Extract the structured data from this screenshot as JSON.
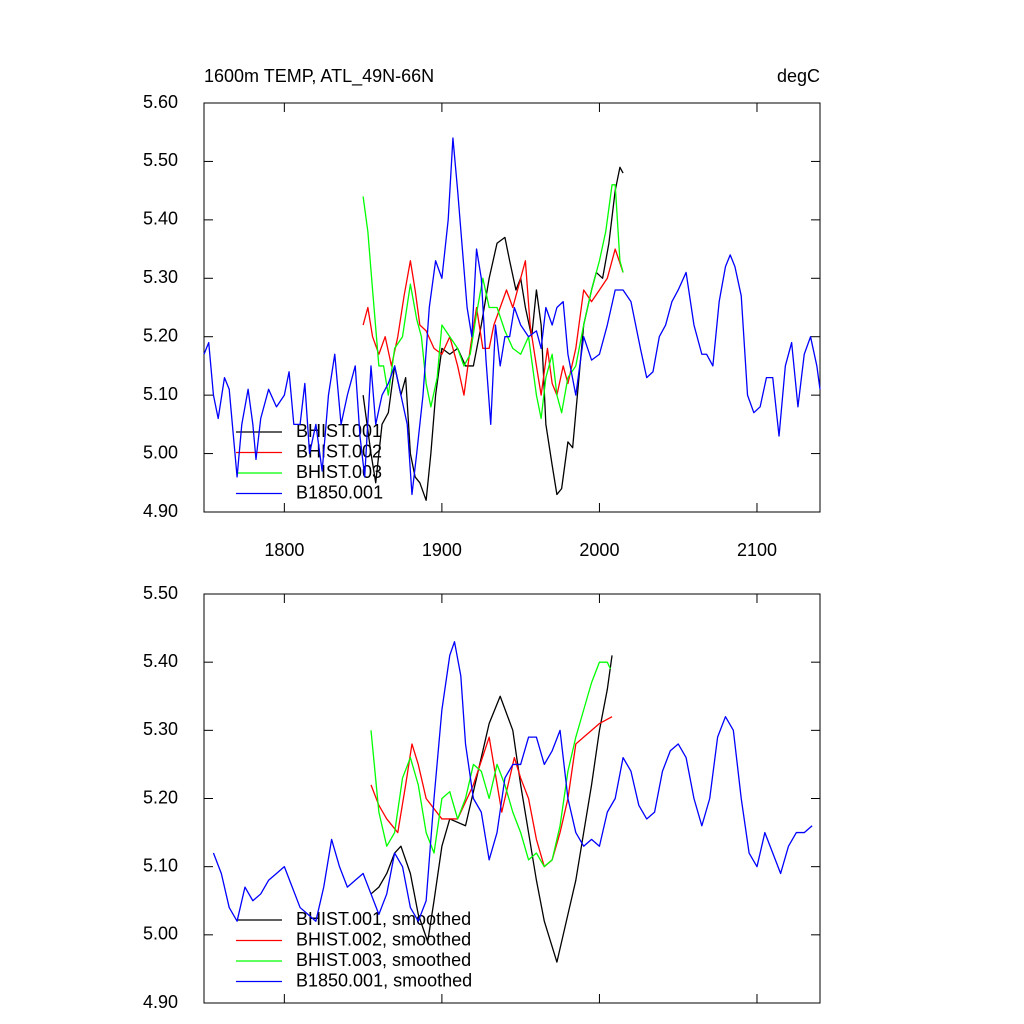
{
  "chart_data": [
    {
      "type": "line",
      "title": "1600m TEMP, ATL_49N-66N",
      "units": "degC",
      "xlim": [
        1749,
        2140
      ],
      "xticks": [
        1800,
        1900,
        2000,
        2100
      ],
      "ylim": [
        4.9,
        5.6
      ],
      "yticks": [
        {
          "value": 4.9,
          "label": "4.90"
        },
        {
          "value": 5.0,
          "label": "5.00"
        },
        {
          "value": 5.1,
          "label": "5.10"
        },
        {
          "value": 5.2,
          "label": "5.20"
        },
        {
          "value": 5.3,
          "label": "5.30"
        },
        {
          "value": 5.4,
          "label": "5.40"
        },
        {
          "value": 5.5,
          "label": "5.50"
        },
        {
          "value": 5.6,
          "label": "5.60"
        }
      ],
      "series": [
        {
          "name": "BHIST.001",
          "color": "#000000",
          "x": [
            1850,
            1855,
            1858,
            1862,
            1866,
            1870,
            1874,
            1877,
            1880,
            1883,
            1886,
            1890,
            1893,
            1896,
            1900,
            1905,
            1910,
            1915,
            1920,
            1925,
            1930,
            1935,
            1940,
            1943,
            1947,
            1950,
            1953,
            1957,
            1960,
            1963,
            1966,
            1970,
            1973,
            1976,
            1980,
            1983,
            1986,
            1990,
            1995,
            1998,
            2002,
            2006,
            2010,
            2013,
            2015
          ],
          "values": [
            5.1,
            5.0,
            4.95,
            5.05,
            5.07,
            5.15,
            5.1,
            5.13,
            5.0,
            4.96,
            4.95,
            4.92,
            5.0,
            5.1,
            5.18,
            5.17,
            5.18,
            5.15,
            5.15,
            5.22,
            5.3,
            5.36,
            5.37,
            5.33,
            5.28,
            5.3,
            5.25,
            5.2,
            5.28,
            5.22,
            5.05,
            4.98,
            4.93,
            4.94,
            5.02,
            5.01,
            5.1,
            5.22,
            5.28,
            5.31,
            5.3,
            5.36,
            5.45,
            5.49,
            5.48
          ]
        },
        {
          "name": "BHIST.002",
          "color": "#ff0000",
          "x": [
            1850,
            1853,
            1856,
            1860,
            1864,
            1868,
            1872,
            1876,
            1880,
            1883,
            1886,
            1890,
            1895,
            1900,
            1905,
            1910,
            1914,
            1918,
            1922,
            1926,
            1930,
            1933,
            1937,
            1941,
            1945,
            1950,
            1953,
            1956,
            1960,
            1963,
            1967,
            1970,
            1973,
            1977,
            1980,
            1985,
            1990,
            1995,
            2000,
            2005,
            2010,
            2015
          ],
          "values": [
            5.22,
            5.25,
            5.2,
            5.17,
            5.2,
            5.15,
            5.2,
            5.27,
            5.33,
            5.28,
            5.22,
            5.21,
            5.18,
            5.17,
            5.2,
            5.15,
            5.1,
            5.18,
            5.25,
            5.18,
            5.18,
            5.22,
            5.25,
            5.28,
            5.25,
            5.3,
            5.33,
            5.22,
            5.15,
            5.1,
            5.18,
            5.12,
            5.1,
            5.15,
            5.12,
            5.18,
            5.28,
            5.26,
            5.28,
            5.3,
            5.35,
            5.31
          ]
        },
        {
          "name": "BHIST.003",
          "color": "#00ff00",
          "x": [
            1850,
            1853,
            1856,
            1860,
            1863,
            1866,
            1870,
            1875,
            1880,
            1884,
            1887,
            1890,
            1893,
            1897,
            1900,
            1905,
            1910,
            1914,
            1918,
            1922,
            1926,
            1930,
            1935,
            1940,
            1945,
            1950,
            1955,
            1960,
            1963,
            1966,
            1970,
            1973,
            1976,
            1980,
            1985,
            1990,
            1995,
            2000,
            2004,
            2008,
            2010,
            2013,
            2015
          ],
          "values": [
            5.44,
            5.38,
            5.28,
            5.15,
            5.15,
            5.1,
            5.18,
            5.2,
            5.29,
            5.23,
            5.2,
            5.12,
            5.08,
            5.13,
            5.22,
            5.2,
            5.18,
            5.15,
            5.17,
            5.24,
            5.3,
            5.25,
            5.25,
            5.21,
            5.18,
            5.17,
            5.2,
            5.1,
            5.06,
            5.13,
            5.17,
            5.1,
            5.07,
            5.13,
            5.15,
            5.22,
            5.28,
            5.33,
            5.38,
            5.46,
            5.46,
            5.33,
            5.31
          ]
        },
        {
          "name": "B1850.001",
          "color": "#0000ff",
          "x": [
            1749,
            1752,
            1755,
            1758,
            1762,
            1765,
            1770,
            1773,
            1777,
            1780,
            1782,
            1785,
            1790,
            1795,
            1800,
            1803,
            1806,
            1810,
            1813,
            1816,
            1820,
            1824,
            1828,
            1832,
            1836,
            1840,
            1845,
            1848,
            1851,
            1855,
            1858,
            1862,
            1866,
            1870,
            1874,
            1878,
            1881,
            1884,
            1888,
            1892,
            1896,
            1900,
            1904,
            1907,
            1910,
            1913,
            1916,
            1919,
            1922,
            1925,
            1928,
            1931,
            1934,
            1937,
            1940,
            1943,
            1946,
            1950,
            1955,
            1960,
            1963,
            1966,
            1970,
            1973,
            1977,
            1980,
            1985,
            1990,
            1995,
            2000,
            2005,
            2010,
            2015,
            2020,
            2023,
            2026,
            2030,
            2034,
            2038,
            2042,
            2046,
            2050,
            2055,
            2060,
            2065,
            2068,
            2072,
            2076,
            2080,
            2083,
            2086,
            2090,
            2094,
            2098,
            2102,
            2106,
            2110,
            2114,
            2118,
            2122,
            2126,
            2130,
            2134,
            2138,
            2140
          ],
          "values": [
            5.17,
            5.19,
            5.1,
            5.06,
            5.13,
            5.11,
            4.96,
            5.05,
            5.11,
            5.05,
            4.99,
            5.06,
            5.11,
            5.08,
            5.1,
            5.14,
            5.05,
            5.05,
            5.12,
            5.0,
            5.05,
            4.97,
            5.1,
            5.17,
            5.05,
            5.1,
            5.15,
            5.03,
            4.96,
            5.15,
            5.05,
            5.1,
            5.12,
            5.15,
            5.1,
            5.05,
            4.93,
            5.0,
            5.1,
            5.25,
            5.33,
            5.3,
            5.4,
            5.54,
            5.45,
            5.35,
            5.25,
            5.2,
            5.35,
            5.3,
            5.16,
            5.05,
            5.22,
            5.15,
            5.2,
            5.2,
            5.25,
            5.22,
            5.2,
            5.21,
            5.18,
            5.25,
            5.22,
            5.25,
            5.26,
            5.17,
            5.1,
            5.2,
            5.16,
            5.17,
            5.22,
            5.28,
            5.28,
            5.26,
            5.22,
            5.18,
            5.13,
            5.14,
            5.2,
            5.22,
            5.26,
            5.28,
            5.31,
            5.22,
            5.17,
            5.17,
            5.15,
            5.26,
            5.32,
            5.34,
            5.32,
            5.27,
            5.1,
            5.07,
            5.08,
            5.13,
            5.13,
            5.03,
            5.15,
            5.19,
            5.08,
            5.17,
            5.2,
            5.15,
            5.11
          ]
        }
      ]
    },
    {
      "type": "line",
      "ylim": [
        4.9,
        5.5
      ],
      "yticks": [
        {
          "value": 4.9,
          "label": "4.90"
        },
        {
          "value": 5.0,
          "label": "5.00"
        },
        {
          "value": 5.1,
          "label": "5.10"
        },
        {
          "value": 5.2,
          "label": "5.20"
        },
        {
          "value": 5.3,
          "label": "5.30"
        },
        {
          "value": 5.4,
          "label": "5.40"
        },
        {
          "value": 5.5,
          "label": "5.50"
        }
      ],
      "series": [
        {
          "name": "BHIST.001, smoothed",
          "color": "#000000",
          "x": [
            1855,
            1860,
            1865,
            1870,
            1874,
            1880,
            1885,
            1891,
            1895,
            1900,
            1905,
            1915,
            1925,
            1930,
            1937,
            1945,
            1950,
            1955,
            1960,
            1965,
            1973,
            1980,
            1985,
            1990,
            1995,
            2000,
            2005,
            2008
          ],
          "values": [
            5.06,
            5.07,
            5.09,
            5.12,
            5.13,
            5.09,
            5.03,
            4.99,
            5.05,
            5.13,
            5.17,
            5.16,
            5.26,
            5.31,
            5.35,
            5.3,
            5.22,
            5.15,
            5.08,
            5.02,
            4.96,
            5.03,
            5.08,
            5.15,
            5.22,
            5.3,
            5.36,
            5.41
          ]
        },
        {
          "name": "BHIST.002, smoothed",
          "color": "#ff0000",
          "x": [
            1855,
            1860,
            1865,
            1872,
            1877,
            1881,
            1885,
            1890,
            1900,
            1910,
            1920,
            1930,
            1938,
            1946,
            1950,
            1955,
            1960,
            1965,
            1970,
            1975,
            1980,
            1985,
            1990,
            1995,
            2000,
            2008
          ],
          "values": [
            5.22,
            5.19,
            5.17,
            5.15,
            5.22,
            5.28,
            5.25,
            5.2,
            5.17,
            5.17,
            5.22,
            5.29,
            5.18,
            5.26,
            5.23,
            5.2,
            5.14,
            5.1,
            5.11,
            5.15,
            5.2,
            5.28,
            5.29,
            5.3,
            5.31,
            5.32
          ]
        },
        {
          "name": "BHIST.003, smoothed",
          "color": "#00ff00",
          "x": [
            1855,
            1860,
            1865,
            1870,
            1875,
            1880,
            1885,
            1890,
            1895,
            1900,
            1905,
            1910,
            1915,
            1920,
            1925,
            1930,
            1935,
            1940,
            1945,
            1950,
            1955,
            1960,
            1965,
            1970,
            1975,
            1980,
            1985,
            1990,
            1995,
            2000,
            2005,
            2007
          ],
          "values": [
            5.3,
            5.18,
            5.13,
            5.15,
            5.23,
            5.26,
            5.22,
            5.15,
            5.12,
            5.2,
            5.21,
            5.17,
            5.2,
            5.25,
            5.24,
            5.2,
            5.25,
            5.22,
            5.18,
            5.15,
            5.11,
            5.12,
            5.1,
            5.11,
            5.16,
            5.24,
            5.29,
            5.33,
            5.37,
            5.4,
            5.4,
            5.39
          ]
        },
        {
          "name": "B1850.001, smoothed",
          "color": "#0000ff",
          "x": [
            1755,
            1760,
            1765,
            1770,
            1775,
            1780,
            1785,
            1790,
            1795,
            1800,
            1805,
            1810,
            1815,
            1820,
            1825,
            1830,
            1835,
            1840,
            1845,
            1850,
            1855,
            1860,
            1865,
            1870,
            1875,
            1880,
            1885,
            1890,
            1895,
            1900,
            1905,
            1908,
            1912,
            1915,
            1920,
            1925,
            1930,
            1935,
            1940,
            1945,
            1950,
            1955,
            1960,
            1965,
            1970,
            1975,
            1980,
            1985,
            1990,
            1995,
            2000,
            2005,
            2010,
            2015,
            2020,
            2025,
            2030,
            2035,
            2040,
            2045,
            2050,
            2055,
            2060,
            2065,
            2070,
            2075,
            2080,
            2085,
            2090,
            2095,
            2100,
            2105,
            2110,
            2115,
            2120,
            2125,
            2130,
            2135
          ],
          "values": [
            5.12,
            5.09,
            5.04,
            5.02,
            5.07,
            5.05,
            5.06,
            5.08,
            5.09,
            5.1,
            5.07,
            5.04,
            5.03,
            5.02,
            5.07,
            5.14,
            5.1,
            5.07,
            5.08,
            5.09,
            5.06,
            5.03,
            5.06,
            5.12,
            5.1,
            5.04,
            5.02,
            5.05,
            5.2,
            5.33,
            5.41,
            5.43,
            5.38,
            5.28,
            5.2,
            5.18,
            5.11,
            5.15,
            5.23,
            5.25,
            5.25,
            5.29,
            5.29,
            5.25,
            5.27,
            5.3,
            5.2,
            5.15,
            5.13,
            5.14,
            5.13,
            5.18,
            5.2,
            5.26,
            5.24,
            5.19,
            5.17,
            5.18,
            5.24,
            5.27,
            5.28,
            5.26,
            5.2,
            5.16,
            5.2,
            5.29,
            5.32,
            5.3,
            5.2,
            5.12,
            5.1,
            5.15,
            5.12,
            5.09,
            5.13,
            5.15,
            5.15,
            5.16
          ]
        }
      ]
    }
  ]
}
